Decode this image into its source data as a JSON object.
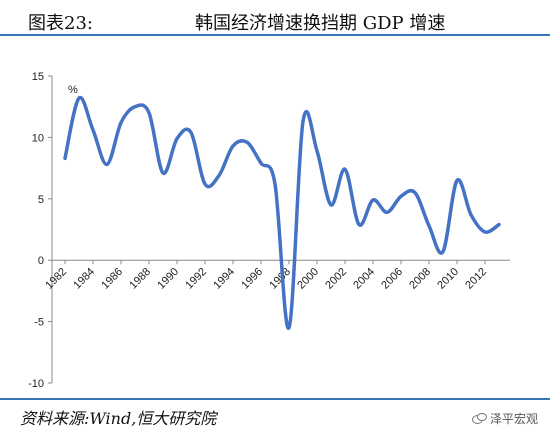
{
  "header": {
    "title_prefix": "图表23:",
    "title": "韩国经济增速换挡期 GDP 增速"
  },
  "footer": {
    "source": "资料来源:Wind,恒大研究院",
    "watermark": "泽平宏观"
  },
  "chart_data": {
    "type": "line",
    "title": "韩国经济增速换挡期 GDP 增速",
    "unit_label": "%",
    "xlabel": "",
    "ylabel": "",
    "ylim": [
      -10,
      15
    ],
    "yticks": [
      15,
      10,
      5,
      0,
      -5,
      -10
    ],
    "xticks": [
      "1982",
      "1984",
      "1986",
      "1988",
      "1990",
      "1992",
      "1994",
      "1996",
      "1998",
      "2000",
      "2002",
      "2004",
      "2006",
      "2008",
      "2010",
      "2012"
    ],
    "grid": false,
    "legend": "none",
    "line_color": "#4472c4",
    "series": [
      {
        "x": [
          1982,
          1983,
          1984,
          1985,
          1986,
          1987,
          1988,
          1989,
          1990,
          1991,
          1992,
          1993,
          1994,
          1995,
          1996,
          1997,
          1998,
          1999,
          2000,
          2001,
          2002,
          2003,
          2004,
          2005,
          2006,
          2007,
          2008,
          2009,
          2010,
          2011,
          2012,
          2013
        ],
        "values": [
          8.3,
          13.2,
          10.6,
          7.8,
          11.2,
          12.5,
          12.0,
          7.1,
          9.9,
          10.4,
          6.2,
          6.9,
          9.3,
          9.6,
          7.9,
          6.2,
          -5.5,
          11.3,
          8.9,
          4.5,
          7.4,
          2.9,
          4.9,
          3.9,
          5.2,
          5.5,
          2.8,
          0.7,
          6.5,
          3.7,
          2.3,
          2.9
        ]
      }
    ]
  }
}
